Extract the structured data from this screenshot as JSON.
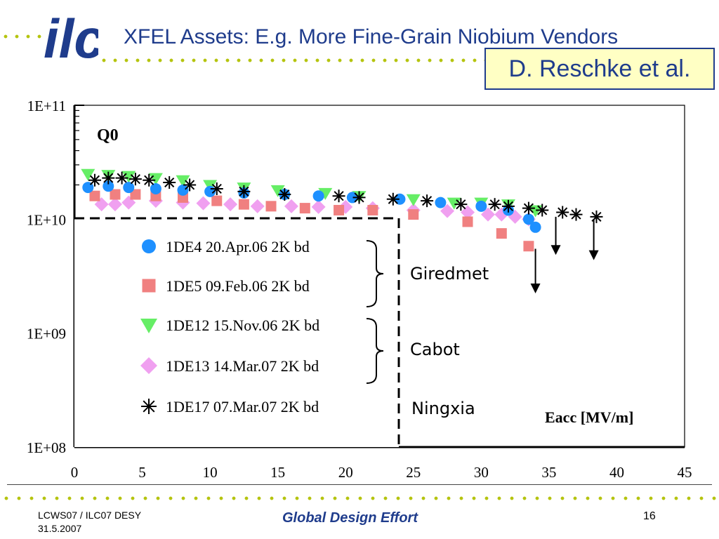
{
  "header": {
    "logo_text": "ilc",
    "title": "XFEL Assets: E.g. More Fine-Grain Niobium Vendors",
    "author_box": "D. Reschke et al."
  },
  "colors": {
    "title_blue": "#1f3c8c",
    "dot_green": "#b5c40f",
    "author_bg": "#ffffc4"
  },
  "chart_data": {
    "type": "scatter",
    "y_axis_title": "Q0",
    "x_axis_title": "Eacc [MV/m]",
    "y_scale": "log",
    "ylim": [
      100000000.0,
      100000000000.0
    ],
    "xlim": [
      0,
      45
    ],
    "x_ticks": [
      "0",
      "5",
      "10",
      "15",
      "20",
      "25",
      "30",
      "35",
      "40",
      "45"
    ],
    "y_ticks": [
      "1E+08",
      "1E+09",
      "1E+10",
      "1E+11"
    ],
    "legend_position": "bottom-left (inside plot)",
    "vendors": [
      {
        "name": "Giredmet",
        "series": [
          "1DE4 20.Apr.06 2K bd",
          "1DE5 09.Feb.06 2K bd"
        ]
      },
      {
        "name": "Cabot",
        "series": [
          "1DE12 15.Nov.06 2K bd",
          "1DE13 14.Mar.07 2K bd"
        ]
      },
      {
        "name": "Ningxia",
        "series": [
          "1DE17 07.Mar.07 2K bd"
        ]
      }
    ],
    "series": [
      {
        "name": "1DE4 20.Apr.06 2K bd",
        "marker": "circle",
        "color": "#1e90ff",
        "x": [
          1.0,
          2.5,
          4.0,
          6.0,
          8.0,
          10.0,
          12.5,
          15.5,
          18.0,
          20.5,
          24.0,
          27.0,
          30.0,
          32.0,
          33.5,
          34.0
        ],
        "y": [
          19000000000.0,
          19500000000.0,
          19000000000.0,
          18500000000.0,
          18000000000.0,
          17500000000.0,
          17000000000.0,
          16500000000.0,
          16000000000.0,
          15500000000.0,
          15000000000.0,
          14000000000.0,
          13000000000.0,
          12000000000.0,
          10000000000.0,
          8500000000.0
        ]
      },
      {
        "name": "1DE5 09.Feb.06 2K bd",
        "marker": "square",
        "color": "#f08080",
        "x": [
          1.5,
          3.0,
          4.5,
          6.0,
          8.0,
          10.5,
          12.5,
          14.5,
          17.0,
          19.5,
          22.0,
          25.0,
          29.0,
          31.5,
          33.5
        ],
        "y": [
          16000000000.0,
          16500000000.0,
          16500000000.0,
          16000000000.0,
          15500000000.0,
          14500000000.0,
          13500000000.0,
          13000000000.0,
          12500000000.0,
          12000000000.0,
          12000000000.0,
          11000000000.0,
          9500000000.0,
          7500000000.0,
          5800000000.0
        ]
      },
      {
        "name": "1DE12 15.Nov.06 2K bd",
        "marker": "triangle",
        "color": "#66ee66",
        "x": [
          1.0,
          2.5,
          4.0,
          6.0,
          8.0,
          10.0,
          12.5,
          15.0,
          18.5,
          21.0,
          25.0,
          28.0,
          30.0,
          32.0,
          34.0
        ],
        "y": [
          25000000000.0,
          24500000000.0,
          24000000000.0,
          23000000000.0,
          22000000000.0,
          20000000000.0,
          19000000000.0,
          18000000000.0,
          17000000000.0,
          16000000000.0,
          15000000000.0,
          14000000000.0,
          14000000000.0,
          13500000000.0,
          12000000000.0
        ]
      },
      {
        "name": "1DE13 14.Mar.07 2K bd",
        "marker": "diamond",
        "color": "#f0a0f0",
        "x": [
          2.0,
          3.0,
          4.0,
          6.0,
          8.0,
          9.5,
          11.5,
          13.5,
          16.0,
          18.0,
          20.0,
          22.0,
          25.0,
          27.5,
          29.0,
          30.5,
          31.5,
          32.5,
          33.5
        ],
        "y": [
          13500000000.0,
          13500000000.0,
          14000000000.0,
          14500000000.0,
          14000000000.0,
          13800000000.0,
          13500000000.0,
          13000000000.0,
          13000000000.0,
          12800000000.0,
          12800000000.0,
          12500000000.0,
          12000000000.0,
          11800000000.0,
          11500000000.0,
          11000000000.0,
          11000000000.0,
          10500000000.0,
          10000000000.0
        ]
      },
      {
        "name": "1DE17 07.Mar.07 2K bd",
        "marker": "asterisk",
        "color": "#000000",
        "x": [
          1.5,
          2.5,
          3.5,
          4.5,
          5.5,
          7.0,
          8.5,
          10.5,
          12.5,
          15.5,
          19.5,
          21.0,
          23.5,
          26.0,
          28.5,
          31.0,
          32.0,
          33.5,
          34.5,
          36.0,
          37.0,
          38.5
        ],
        "y": [
          22000000000.0,
          23000000000.0,
          23000000000.0,
          22500000000.0,
          22000000000.0,
          21000000000.0,
          20000000000.0,
          18500000000.0,
          17500000000.0,
          16500000000.0,
          16000000000.0,
          15500000000.0,
          15000000000.0,
          14500000000.0,
          13500000000.0,
          13500000000.0,
          13000000000.0,
          12500000000.0,
          12000000000.0,
          11500000000.0,
          11000000000.0,
          10500000000.0
        ]
      }
    ],
    "quench_limits": [
      {
        "x": 34.0,
        "from_y": 5500000000.0,
        "to_y": 2300000000.0
      },
      {
        "x": 35.5,
        "from_y": 10500000000.0,
        "to_y": 5000000000.0
      },
      {
        "x": 38.3,
        "from_y": 10000000000.0,
        "to_y": 4500000000.0
      }
    ]
  },
  "footer": {
    "conference_line1": "LCWS07 / ILC07 DESY",
    "conference_line2": "31.5.2007",
    "center": "Global Design Effort",
    "page_number": "16"
  }
}
